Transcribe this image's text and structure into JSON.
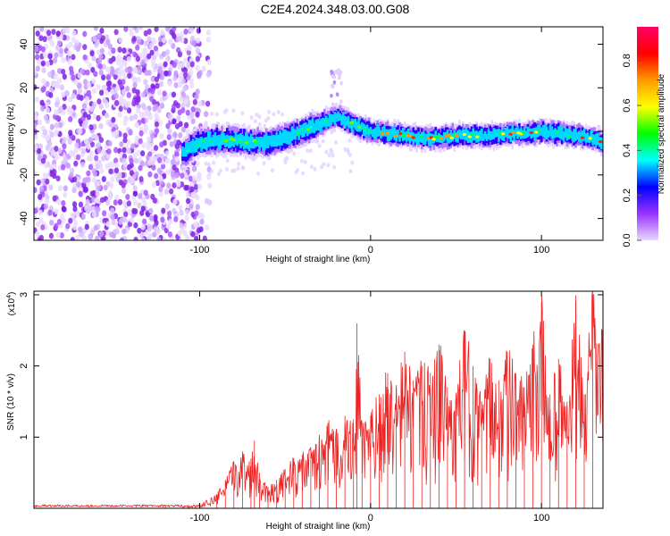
{
  "title": "C2E4.2024.348.03.00.G08",
  "chart_data": [
    {
      "type": "heatmap",
      "xlabel": "Height of straight line (km)",
      "ylabel": "Frequency (Hz)",
      "xlim": [
        -197,
        136
      ],
      "ylim": [
        -50,
        48
      ],
      "xticks": [
        -100,
        0,
        100
      ],
      "yticks": [
        40,
        20,
        0,
        -20,
        -40
      ],
      "colorbar": {
        "label": "Normalized spectral amplitude",
        "range": [
          0,
          0.95
        ],
        "ticks": [
          0.0,
          0.2,
          0.4,
          0.6,
          0.8
        ],
        "colors": [
          "#e8d8ff",
          "#9933ff",
          "#0000ff",
          "#00ffff",
          "#00ff00",
          "#ffff00",
          "#ff9900",
          "#ff0000",
          "#ff0066"
        ]
      },
      "noise_region": {
        "x": [
          -197,
          -100
        ],
        "y": [
          -50,
          48
        ]
      },
      "ridge": {
        "x": [
          -110,
          -100,
          -90,
          -80,
          -70,
          -60,
          -50,
          -40,
          -30,
          -20,
          -10,
          0,
          10,
          20,
          30,
          40,
          50,
          60,
          70,
          80,
          90,
          100,
          110,
          120,
          130,
          136
        ],
        "y": [
          -10,
          -5,
          -4,
          -4,
          -5,
          -5,
          -3,
          0,
          3,
          7,
          3,
          0,
          -1,
          -2,
          -3,
          -3,
          -2,
          -2,
          -2,
          -1,
          -1,
          0,
          -1,
          -2,
          -3,
          -5
        ]
      }
    },
    {
      "type": "line",
      "xlabel": "Height of straight line (km)",
      "ylabel": "SNR (10 * v/v)",
      "scale_label": "(x10",
      "scale_exp": "4",
      "scale_close": ")",
      "xlim": [
        -197,
        136
      ],
      "ylim": [
        0,
        3.05
      ],
      "xticks": [
        -100,
        0,
        100
      ],
      "yticks": [
        1,
        2,
        3
      ],
      "color": "#ee2222",
      "series": [
        {
          "x": [
            -197,
            -120,
            -100,
            -90,
            -85,
            -80,
            -75,
            -70,
            -68,
            -65,
            -60,
            -55,
            -50,
            -45,
            -40,
            -35,
            -30,
            -25,
            -20,
            -15,
            -10,
            -8,
            -5,
            0,
            5,
            10,
            15,
            20,
            25,
            30,
            35,
            40,
            45,
            50,
            55,
            60,
            65,
            70,
            75,
            80,
            85,
            90,
            95,
            100,
            105,
            110,
            115,
            120,
            125,
            130,
            136
          ],
          "y": [
            0.03,
            0.03,
            0.05,
            0.2,
            0.4,
            0.65,
            0.8,
            0.7,
            0.95,
            0.5,
            0.3,
            0.4,
            0.55,
            0.7,
            0.75,
            0.85,
            1.0,
            1.2,
            1.1,
            1.3,
            1.25,
            2.6,
            1.2,
            1.3,
            1.6,
            1.9,
            1.7,
            2.2,
            1.8,
            2.0,
            1.9,
            2.3,
            1.7,
            1.6,
            2.5,
            2.0,
            1.5,
            2.1,
            1.8,
            2.2,
            1.9,
            1.7,
            2.3,
            2.9,
            1.6,
            2.1,
            1.5,
            2.9,
            1.6,
            3.0,
            2.5
          ]
        }
      ]
    }
  ]
}
